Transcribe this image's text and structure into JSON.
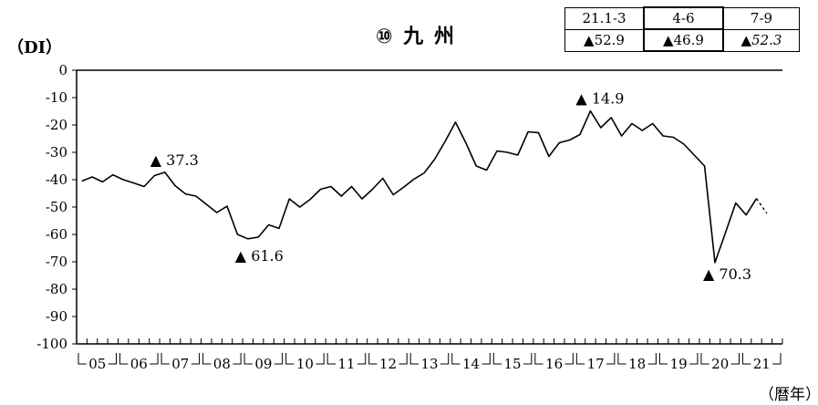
{
  "title": "⑩ 九 州",
  "unit_label": "（DI）",
  "x_unit_label": "（暦年）",
  "summary_table": {
    "headers": [
      "21.1-3",
      "4-6",
      "7-9"
    ],
    "values": [
      "▲52.9",
      "▲46.9",
      "▲52.3"
    ],
    "forecast_index": 2
  },
  "chart_data": {
    "type": "line",
    "ylim": [
      -100,
      0
    ],
    "yticks": [
      0,
      -10,
      -20,
      -30,
      -40,
      -50,
      -60,
      -70,
      -80,
      -90,
      -100
    ],
    "ytick_labels": [
      "0",
      "-10",
      "-20",
      "-30",
      "-40",
      "-50",
      "-60",
      "-70",
      "-80",
      "-90",
      "-100"
    ],
    "x_start_year": 2005,
    "points_per_year": 4,
    "year_labels": [
      "05",
      "06",
      "07",
      "08",
      "09",
      "10",
      "11",
      "12",
      "13",
      "14",
      "15",
      "16",
      "17",
      "18",
      "19",
      "20",
      "21"
    ],
    "values": [
      -40.5,
      -39,
      -40.8,
      -38.2,
      -40,
      -41.2,
      -42.5,
      -38.5,
      -37.3,
      -42.2,
      -45.2,
      -46,
      -49,
      -52,
      -49.7,
      -60,
      -61.6,
      -61,
      -56.5,
      -57.8,
      -47,
      -50,
      -47.2,
      -43.5,
      -42.5,
      -46,
      -42.5,
      -47,
      -43.5,
      -39.5,
      -45.5,
      -42.8,
      -39.8,
      -37.5,
      -32.5,
      -26,
      -19,
      -26.5,
      -35,
      -36.5,
      -29.5,
      -30,
      -31,
      -22.5,
      -22.8,
      -31.5,
      -26.5,
      -25.5,
      -23.5,
      -14.9,
      -21,
      -17.3,
      -24,
      -19.5,
      -22,
      -19.5,
      -24,
      -24.5,
      -27,
      -31,
      -35,
      -70.3,
      -59.5,
      -48.5,
      -52.9,
      -46.9
    ],
    "forecast_value": -52.3,
    "annotations": [
      {
        "label": "▲ 37.3",
        "index": 8,
        "value": -37.3
      },
      {
        "label": "▲ 61.6",
        "index": 16,
        "value": -61.6
      },
      {
        "label": "▲ 14.9",
        "index": 49,
        "value": -14.9
      },
      {
        "label": "▲ 70.3",
        "index": 61,
        "value": -70.3
      }
    ],
    "line_color": "#000000"
  }
}
